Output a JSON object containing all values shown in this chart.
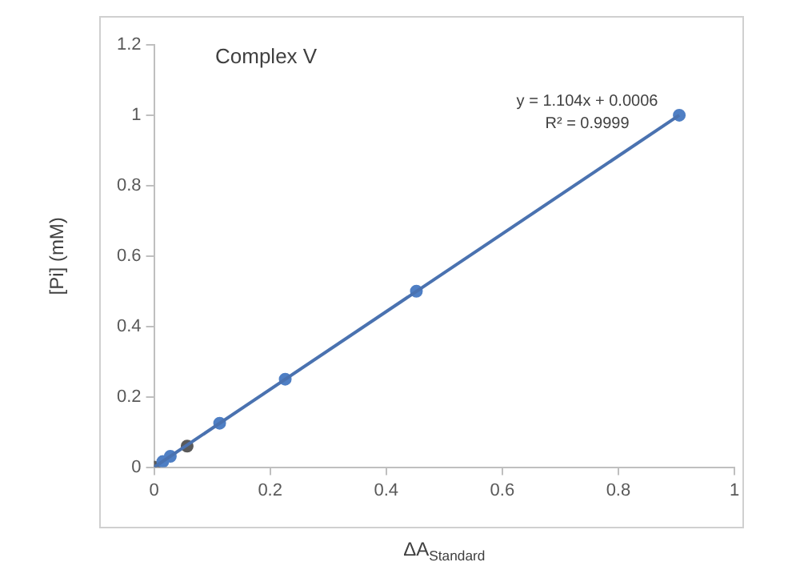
{
  "chart_data": {
    "type": "scatter",
    "title": "Complex V",
    "xlabel": "ΔA$_{Standard}$",
    "ylabel": "[Pi] (mM)",
    "xlim": [
      0,
      1
    ],
    "xticks": [
      0,
      0.2,
      0.4,
      0.6,
      0.8,
      1
    ],
    "ylim": [
      0,
      1.2
    ],
    "yticks": [
      0,
      0.2,
      0.4,
      0.6,
      0.8,
      1,
      1.2
    ],
    "grid": false,
    "legend": false,
    "marker": "circle",
    "series": [
      {
        "type": "line",
        "color": "#4a72b0",
        "x": [
          0,
          0.905
        ],
        "values": [
          0,
          1
        ],
        "marker": "none",
        "line_style": "solid"
      },
      {
        "type": "scatter",
        "x": [
          0,
          0.015,
          0.028,
          0.057,
          0.113,
          0.226,
          0.452,
          0.905
        ],
        "values": [
          0,
          0.016,
          0.031,
          0.06,
          0.125,
          0.25,
          0.5,
          1
        ],
        "colors": [
          "#5a5a5a",
          "#4f7fc4",
          "#4f7fc4",
          "#5a5a5a",
          "#4f7fc4",
          "#4f7fc4",
          "#4f7fc4",
          "#4f7fc4"
        ]
      }
    ],
    "annotations": [
      "y = 1.104x + 0.0006",
      "R² = 0.9999"
    ]
  }
}
